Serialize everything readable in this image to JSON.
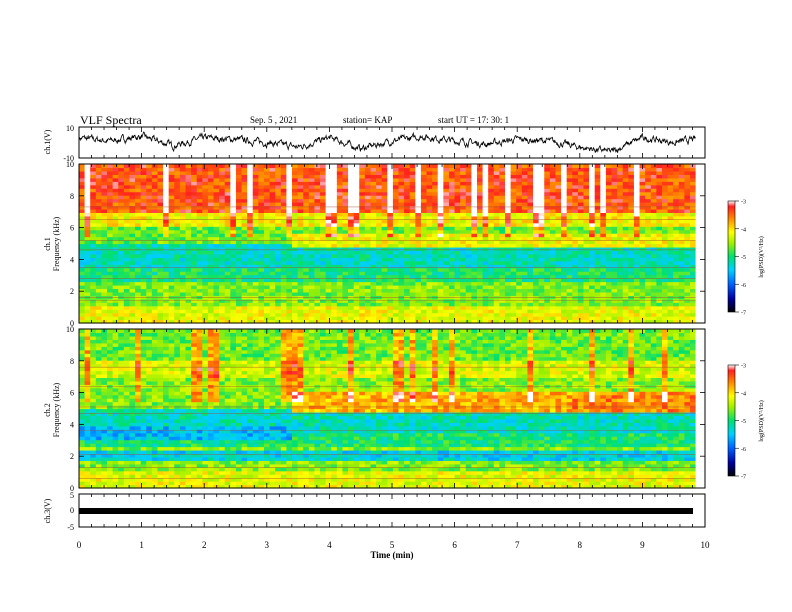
{
  "header": {
    "title": "VLF Spectra",
    "date": "Sep. 5 , 2021",
    "station": "station= KAP",
    "start": "start  UT =   17: 30: 1"
  },
  "colors": {
    "spectrogram_low": "#0000a0",
    "spectrogram_mid": "#00e070",
    "spectrogram_high": "#ff2020",
    "trace": "#000000"
  },
  "chart_data": [
    {
      "type": "line",
      "panel": "ch1-voltage",
      "ylabel": "ch.1(V)",
      "ylim": [
        -10,
        10
      ],
      "yticks": [
        "10",
        "-10"
      ],
      "xlim": [
        0,
        10
      ],
      "x": [
        0,
        0.5,
        1,
        1.5,
        2,
        2.5,
        3,
        3.5,
        4,
        4.5,
        5,
        5.5,
        6,
        6.5,
        7,
        7.5,
        8,
        8.5,
        9,
        9.5,
        9.85
      ],
      "y": [
        3,
        1,
        4,
        -2,
        3,
        2,
        0,
        -3,
        3,
        -4,
        1,
        4,
        1,
        -1,
        2,
        1,
        -3,
        -6,
        3,
        0,
        2
      ]
    },
    {
      "type": "heatmap",
      "panel": "ch1-spectrogram",
      "ylabel": "ch.1\nFrequency  (kHz)",
      "ylim": [
        0,
        10
      ],
      "yticks": [
        "0",
        "2",
        "4",
        "6",
        "8",
        "10"
      ],
      "xlim": [
        0,
        10
      ],
      "colorbar": {
        "label": "log(PSD)(V²/Hz)",
        "range": [
          -7,
          -3
        ],
        "ticks": [
          "-3",
          "-4",
          "-5",
          "-6",
          "-7"
        ]
      }
    },
    {
      "type": "heatmap",
      "panel": "ch2-spectrogram",
      "ylabel": "ch.2\nFrequency  (kHz)",
      "ylim": [
        0,
        10
      ],
      "yticks": [
        "0",
        "2",
        "4",
        "6",
        "8",
        "10"
      ],
      "xlim": [
        0,
        10
      ],
      "colorbar": {
        "label": "log(PSD)(V²/Hz)",
        "range": [
          -7,
          -3
        ],
        "ticks": [
          "-3",
          "-4",
          "-5",
          "-6",
          "-7"
        ]
      }
    },
    {
      "type": "line",
      "panel": "ch3-voltage",
      "ylabel": "ch.3(V)",
      "ylim": [
        -5,
        5
      ],
      "yticks": [
        "5",
        "0",
        "-5"
      ],
      "xlim": [
        0,
        10
      ],
      "x": [
        0,
        9.85
      ],
      "y": [
        0,
        0
      ]
    }
  ],
  "xaxis": {
    "label": "Time  (min)",
    "ticks": [
      "0",
      "1",
      "2",
      "3",
      "4",
      "5",
      "6",
      "7",
      "8",
      "9",
      "10"
    ]
  }
}
